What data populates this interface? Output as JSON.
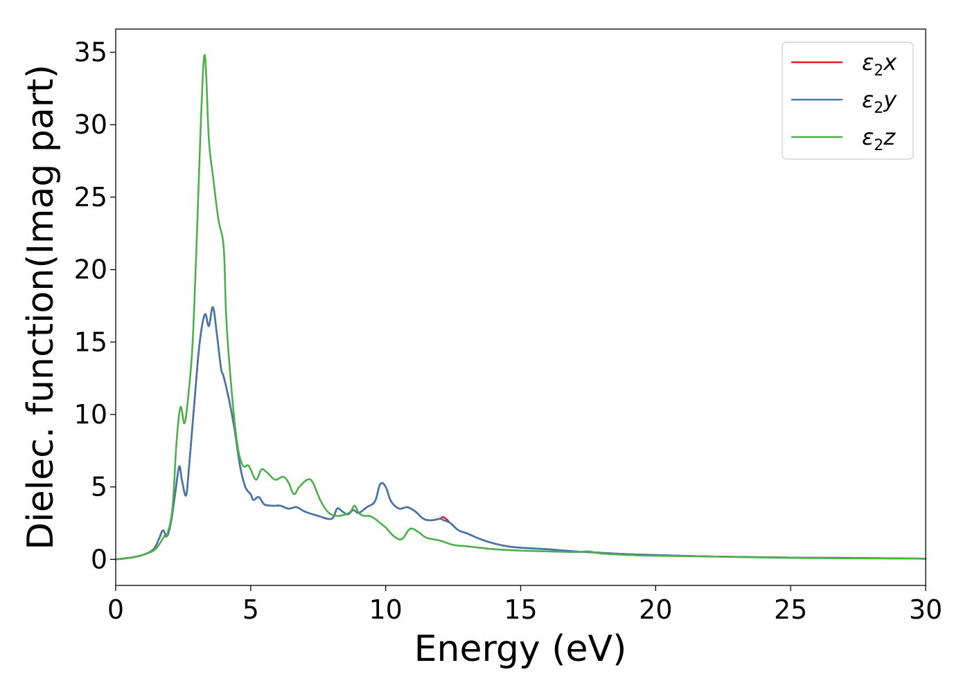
{
  "chart_data": {
    "type": "line",
    "xlabel": "Energy (eV)",
    "ylabel": "Dielec. function(Imag part)",
    "xlim": [
      0,
      30
    ],
    "ylim": [
      -1.8,
      36.6
    ],
    "xticks": [
      0,
      5,
      10,
      15,
      20,
      25,
      30
    ],
    "yticks": [
      0,
      5,
      10,
      15,
      20,
      25,
      30,
      35
    ],
    "grid": false,
    "legend_position": "top-right",
    "series": [
      {
        "name": "ε2x",
        "legend_base": "ε",
        "legend_sub": "2",
        "legend_suffix": "x",
        "color": "#e41a1c",
        "x": [
          0,
          0.5,
          1.0,
          1.4,
          1.6,
          1.75,
          1.9,
          2.05,
          2.2,
          2.35,
          2.45,
          2.6,
          2.7,
          2.9,
          3.1,
          3.3,
          3.45,
          3.6,
          3.75,
          3.9,
          4.0,
          4.2,
          4.4,
          4.6,
          4.8,
          5.0,
          5.1,
          5.3,
          5.5,
          5.8,
          6.1,
          6.4,
          6.7,
          7.0,
          7.5,
          8.0,
          8.2,
          8.4,
          8.6,
          8.8,
          9.0,
          9.3,
          9.6,
          9.8,
          10.0,
          10.2,
          10.5,
          10.8,
          11.1,
          11.4,
          11.7,
          12.0,
          12.15,
          12.4,
          12.7,
          13.0,
          13.5,
          14.0,
          14.5,
          15.0,
          16.0,
          17.0,
          18.0,
          19.0,
          20.0,
          22.0,
          25.0,
          27.0,
          30.0
        ],
        "values": [
          0,
          0.1,
          0.3,
          0.7,
          1.4,
          2.0,
          1.6,
          2.6,
          4.5,
          6.4,
          5.5,
          4.4,
          6.0,
          10.5,
          14.8,
          16.9,
          16.1,
          17.4,
          15.5,
          13.2,
          12.6,
          11.0,
          9.0,
          6.5,
          5.0,
          4.5,
          4.1,
          4.3,
          3.8,
          3.7,
          3.7,
          3.5,
          3.6,
          3.3,
          3.0,
          2.8,
          3.5,
          3.3,
          3.1,
          3.4,
          3.2,
          3.6,
          4.0,
          5.2,
          5.0,
          4.0,
          3.5,
          3.6,
          3.3,
          2.8,
          2.7,
          2.8,
          2.9,
          2.5,
          2.0,
          1.8,
          1.4,
          1.1,
          0.9,
          0.8,
          0.7,
          0.55,
          0.45,
          0.35,
          0.3,
          0.2,
          0.12,
          0.1,
          0.05
        ]
      },
      {
        "name": "ε2y",
        "legend_base": "ε",
        "legend_sub": "2",
        "legend_suffix": "y",
        "color": "#4477aa",
        "x": [
          0,
          0.5,
          1.0,
          1.4,
          1.6,
          1.75,
          1.9,
          2.05,
          2.2,
          2.35,
          2.45,
          2.6,
          2.7,
          2.9,
          3.1,
          3.3,
          3.45,
          3.6,
          3.75,
          3.9,
          4.0,
          4.2,
          4.4,
          4.6,
          4.8,
          5.0,
          5.1,
          5.3,
          5.5,
          5.8,
          6.1,
          6.4,
          6.7,
          7.0,
          7.5,
          8.0,
          8.2,
          8.4,
          8.6,
          8.8,
          9.0,
          9.3,
          9.6,
          9.8,
          10.0,
          10.2,
          10.5,
          10.8,
          11.1,
          11.4,
          11.7,
          12.0,
          12.15,
          12.4,
          12.7,
          13.0,
          13.5,
          14.0,
          14.5,
          15.0,
          16.0,
          17.0,
          18.0,
          19.0,
          20.0,
          22.0,
          25.0,
          27.0,
          30.0
        ],
        "values": [
          0,
          0.1,
          0.3,
          0.7,
          1.4,
          2.0,
          1.6,
          2.6,
          4.5,
          6.4,
          5.5,
          4.4,
          6.0,
          10.5,
          14.8,
          16.9,
          16.1,
          17.4,
          15.5,
          13.2,
          12.6,
          11.0,
          9.0,
          6.5,
          5.0,
          4.5,
          4.1,
          4.3,
          3.8,
          3.7,
          3.7,
          3.5,
          3.6,
          3.3,
          3.0,
          2.8,
          3.5,
          3.3,
          3.1,
          3.4,
          3.2,
          3.6,
          4.0,
          5.2,
          5.0,
          4.0,
          3.5,
          3.6,
          3.3,
          2.8,
          2.7,
          2.8,
          2.7,
          2.5,
          2.0,
          1.8,
          1.4,
          1.1,
          0.9,
          0.8,
          0.7,
          0.55,
          0.45,
          0.35,
          0.3,
          0.2,
          0.12,
          0.1,
          0.05
        ]
      },
      {
        "name": "ε2z",
        "legend_base": "ε",
        "legend_sub": "2",
        "legend_suffix": "z",
        "color": "#4daf4a",
        "x": [
          0,
          0.5,
          1.0,
          1.4,
          1.6,
          1.8,
          1.9,
          2.1,
          2.25,
          2.4,
          2.55,
          2.7,
          2.85,
          3.0,
          3.15,
          3.3,
          3.45,
          3.6,
          3.8,
          4.0,
          4.1,
          4.3,
          4.5,
          4.7,
          4.9,
          5.0,
          5.2,
          5.4,
          5.6,
          5.9,
          6.2,
          6.4,
          6.6,
          6.8,
          7.1,
          7.3,
          7.6,
          7.9,
          8.2,
          8.5,
          8.7,
          8.85,
          9.0,
          9.2,
          9.4,
          9.6,
          9.8,
          10.0,
          10.3,
          10.6,
          10.9,
          11.2,
          11.5,
          12.0,
          12.5,
          13.0,
          13.5,
          14.0,
          14.5,
          15.0,
          16.0,
          17.0,
          17.5,
          18.0,
          19.0,
          20.0,
          22.0,
          25.0,
          30.0
        ],
        "values": [
          0,
          0.1,
          0.3,
          0.6,
          1.0,
          1.6,
          1.7,
          3.5,
          8.0,
          10.5,
          9.4,
          11.5,
          15.0,
          22.0,
          30.0,
          34.8,
          29.0,
          26.5,
          23.5,
          21.5,
          16.5,
          11.5,
          8.0,
          6.5,
          6.5,
          6.2,
          5.5,
          6.2,
          6.0,
          5.5,
          5.7,
          5.3,
          4.5,
          5.0,
          5.5,
          5.3,
          4.0,
          3.2,
          3.0,
          3.1,
          3.3,
          3.7,
          3.2,
          3.0,
          3.0,
          2.8,
          2.5,
          2.2,
          1.6,
          1.4,
          2.1,
          1.9,
          1.5,
          1.3,
          1.0,
          0.9,
          0.8,
          0.7,
          0.65,
          0.6,
          0.55,
          0.5,
          0.55,
          0.4,
          0.3,
          0.25,
          0.2,
          0.1,
          0.05
        ]
      }
    ]
  }
}
